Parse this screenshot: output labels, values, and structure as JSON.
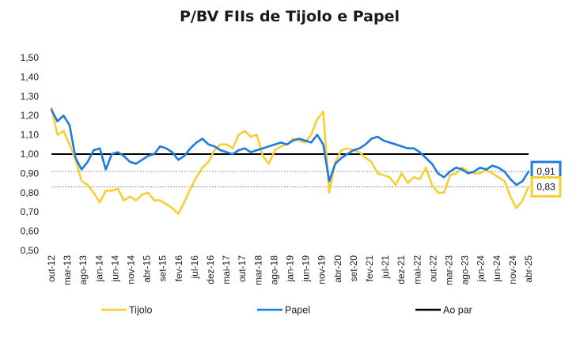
{
  "chart_data": {
    "type": "line",
    "title": "P/BV FIIs de Tijolo e Papel",
    "xlabel": "",
    "ylabel": "",
    "ylim": [
      0.5,
      1.5
    ],
    "yticks": [
      0.5,
      0.6,
      0.7,
      0.8,
      0.9,
      1.0,
      1.1,
      1.2,
      1.3,
      1.4,
      1.5
    ],
    "ytick_labels": [
      "0,50",
      "0,60",
      "0,70",
      "0,80",
      "0,90",
      "1,00",
      "1,10",
      "1,20",
      "1,30",
      "1,40",
      "1,50"
    ],
    "x_labels": [
      "out-12",
      "mar-13",
      "ago-13",
      "jan-14",
      "jun-14",
      "nov-14",
      "abr-15",
      "set-15",
      "fev-16",
      "jul-16",
      "dez-16",
      "mai-17",
      "out-17",
      "mar-18",
      "ago-18",
      "jan-19",
      "jun-19",
      "nov-19",
      "abr-20",
      "set-20",
      "fev-21",
      "jul-21",
      "dez-21",
      "mai-22",
      "out-22",
      "mar-23",
      "ago-23",
      "jan-24",
      "jun-24",
      "nov-24",
      "abr-25"
    ],
    "series": [
      {
        "name": "Tijolo",
        "color": "#F5D033",
        "values": [
          1.24,
          1.1,
          1.12,
          1.05,
          0.97,
          0.86,
          0.84,
          0.8,
          0.75,
          0.81,
          0.81,
          0.82,
          0.76,
          0.78,
          0.76,
          0.79,
          0.8,
          0.76,
          0.76,
          0.74,
          0.72,
          0.69,
          0.75,
          0.82,
          0.88,
          0.93,
          0.96,
          1.02,
          1.05,
          1.05,
          1.03,
          1.1,
          1.12,
          1.09,
          1.1,
          0.99,
          0.95,
          1.02,
          1.04,
          1.05,
          1.08,
          1.07,
          1.06,
          1.1,
          1.18,
          1.22,
          0.8,
          0.96,
          1.02,
          1.03,
          1.02,
          1.01,
          0.98,
          0.96,
          0.9,
          0.89,
          0.88,
          0.84,
          0.9,
          0.85,
          0.88,
          0.87,
          0.93,
          0.84,
          0.8,
          0.8,
          0.89,
          0.9,
          0.93,
          0.91,
          0.9,
          0.9,
          0.92,
          0.9,
          0.88,
          0.86,
          0.78,
          0.72,
          0.76,
          0.83
        ]
      },
      {
        "name": "Papel",
        "color": "#1E7BE0",
        "values": [
          1.23,
          1.17,
          1.2,
          1.15,
          0.98,
          0.92,
          0.96,
          1.02,
          1.03,
          0.92,
          1.0,
          1.01,
          0.99,
          0.96,
          0.95,
          0.97,
          0.99,
          1.0,
          1.04,
          1.03,
          1.01,
          0.97,
          0.99,
          1.03,
          1.06,
          1.08,
          1.05,
          1.04,
          1.02,
          1.01,
          1.0,
          1.02,
          1.03,
          1.01,
          1.02,
          1.03,
          1.04,
          1.05,
          1.06,
          1.05,
          1.07,
          1.08,
          1.07,
          1.06,
          1.1,
          1.05,
          0.86,
          0.95,
          0.98,
          1.0,
          1.02,
          1.03,
          1.05,
          1.08,
          1.09,
          1.07,
          1.06,
          1.05,
          1.04,
          1.03,
          1.03,
          1.01,
          0.98,
          0.95,
          0.9,
          0.88,
          0.91,
          0.93,
          0.92,
          0.9,
          0.91,
          0.93,
          0.92,
          0.94,
          0.93,
          0.91,
          0.87,
          0.84,
          0.86,
          0.91
        ]
      }
    ],
    "reference_lines": [
      {
        "name": "Ao par",
        "value": 1.0,
        "color": "#000000",
        "style": "solid"
      },
      {
        "name": "Papel-current",
        "value": 0.91,
        "color": "#777777",
        "style": "dotted"
      },
      {
        "name": "Tijolo-current",
        "value": 0.83,
        "color": "#777777",
        "style": "dotted"
      }
    ],
    "end_labels": [
      {
        "series": "Papel",
        "text": "0,91",
        "color": "#1E7BE0"
      },
      {
        "series": "Tijolo",
        "text": "0,83",
        "color": "#F5D033"
      }
    ],
    "legend": [
      {
        "label": "Tijolo",
        "color": "#F5D033"
      },
      {
        "label": "Papel",
        "color": "#1E7BE0"
      },
      {
        "label": "Ao par",
        "color": "#000000"
      }
    ],
    "legend_position": "bottom"
  }
}
